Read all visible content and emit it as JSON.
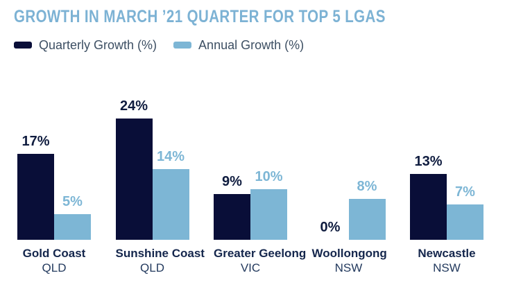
{
  "chart_data": {
    "type": "bar",
    "title": "GROWTH IN MARCH ’21 QUARTER FOR TOP 5 LGAS",
    "categories": [
      "Gold Coast",
      "Sunshine Coast",
      "Greater Geelong",
      "Woollongong",
      "Newcastle"
    ],
    "category_states": [
      "QLD",
      "QLD",
      "VIC",
      "NSW",
      "NSW"
    ],
    "series": [
      {
        "name": "Quarterly Growth (%)",
        "values": [
          17,
          24,
          9,
          0,
          13
        ],
        "color": "#090e38",
        "label_color": "#0f1c3f"
      },
      {
        "name": "Annual Growth (%)",
        "values": [
          5,
          14,
          10,
          8,
          7
        ],
        "color": "#7db6d5",
        "label_color": "#7db6d5"
      }
    ],
    "value_suffix": "%",
    "ylim": [
      0,
      26
    ],
    "grid": false,
    "axes_hidden": true,
    "legend_position": "top-left",
    "data_labels": "above-bars"
  },
  "colors": {
    "title": "#7cb2d4",
    "legend_text": "#3d4f63",
    "category_name": "#14264c",
    "category_state": "#233a5e",
    "background": "#ffffff"
  }
}
